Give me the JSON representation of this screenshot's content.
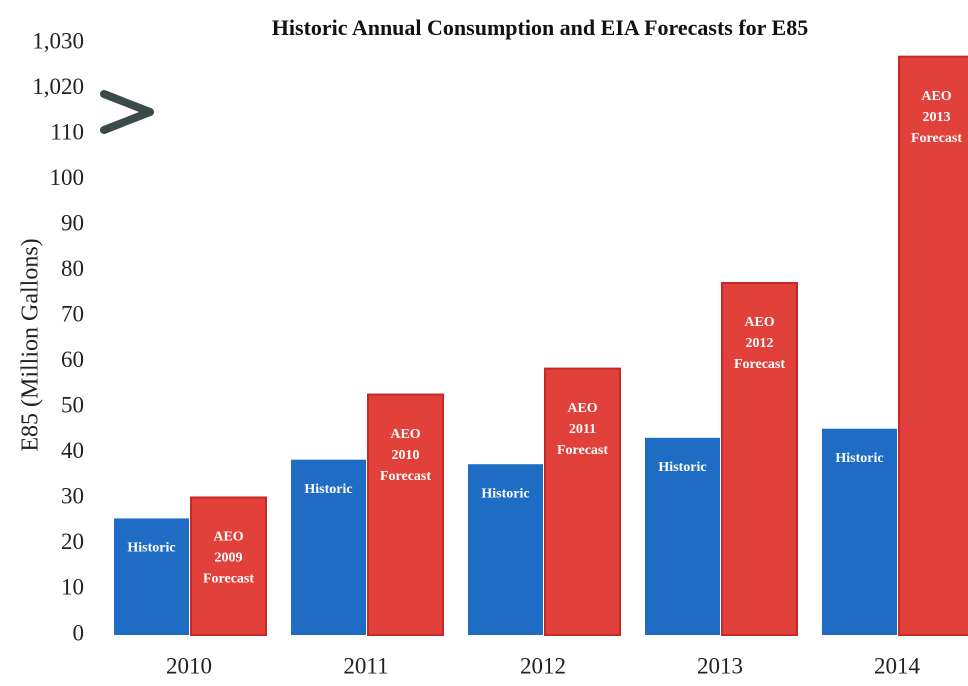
{
  "chart_data": {
    "type": "bar",
    "title": "Historic Annual Consumption and EIA Forecasts for E85",
    "y_label": "E85 (Million Gallons)",
    "categories": [
      "2010",
      "2011",
      "2012",
      "2013",
      "2014"
    ],
    "series": [
      {
        "name": "Historic",
        "color": "#1f6cc4",
        "values": [
          25.6,
          38.5,
          37.5,
          43.3,
          45.3
        ],
        "labels": [
          [
            "Historic"
          ],
          [
            "Historic"
          ],
          [
            "Historic"
          ],
          [
            "Historic"
          ],
          [
            "Historic"
          ]
        ]
      },
      {
        "name": "AEO Forecast",
        "color": "#e2403a",
        "values": [
          30.2,
          52.8,
          58.5,
          77.3,
          1027
        ],
        "labels": [
          [
            "AEO",
            "2009",
            "Forecast"
          ],
          [
            "AEO",
            "2010",
            "Forecast"
          ],
          [
            "AEO",
            "2011",
            "Forecast"
          ],
          [
            "AEO",
            "2012",
            "Forecast"
          ],
          [
            "AEO",
            "2013",
            "Forecast"
          ]
        ]
      }
    ],
    "ylim": [
      0,
      1030
    ],
    "yticks": [
      0,
      10,
      20,
      30,
      40,
      50,
      60,
      70,
      80,
      90,
      100,
      110,
      {
        "value": 1020,
        "label": "1,020"
      },
      {
        "value": 1030,
        "label": "1,030"
      }
    ]
  }
}
